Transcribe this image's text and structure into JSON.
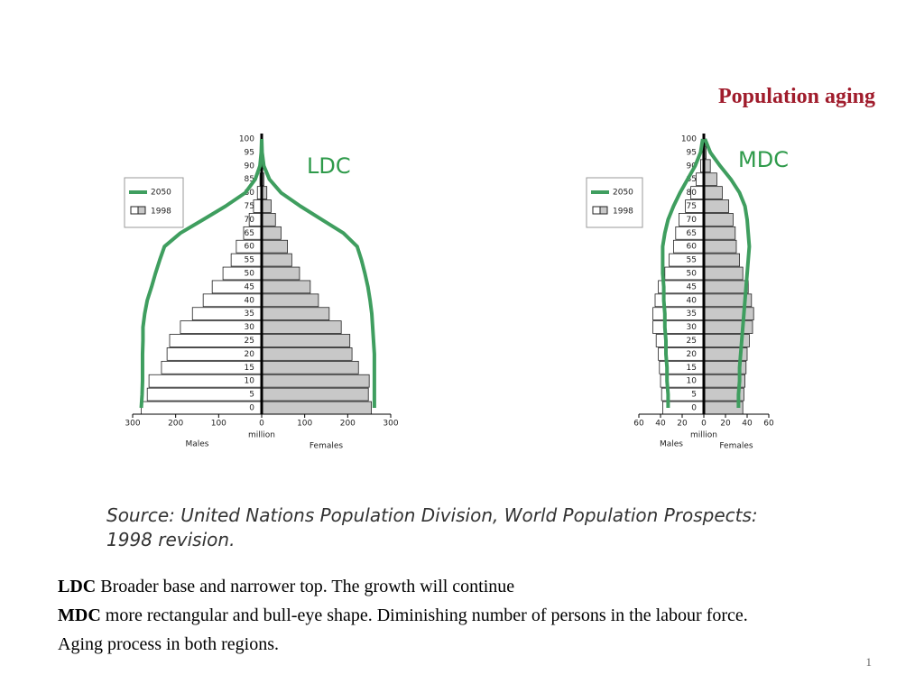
{
  "title": "Population aging",
  "chart_data": [
    {
      "type": "pyramid",
      "title": "LDC",
      "xlabel": "million",
      "left_label": "Males",
      "right_label": "Females",
      "categories": [
        "0",
        "5",
        "10",
        "15",
        "20",
        "25",
        "30",
        "35",
        "40",
        "45",
        "50",
        "55",
        "60",
        "65",
        "70",
        "75",
        "80",
        "85",
        "90",
        "95",
        "100"
      ],
      "xlim": [
        0,
        300
      ],
      "xticks": [
        0,
        100,
        200,
        300
      ],
      "series": [
        {
          "name": "2050",
          "color": "#3f9e5f",
          "males": [
            280,
            278,
            277,
            277,
            277,
            276,
            276,
            272,
            266,
            256,
            247,
            237,
            226,
            189,
            136,
            84,
            38,
            15,
            4,
            1,
            0
          ],
          "females": [
            262,
            262,
            262,
            262,
            262,
            260,
            258,
            256,
            252,
            247,
            240,
            232,
            222,
            190,
            140,
            90,
            45,
            18,
            5,
            1,
            0
          ]
        },
        {
          "name": "1998",
          "color": "#c8c8c8",
          "males": [
            280,
            266,
            262,
            233,
            220,
            214,
            189,
            161,
            136,
            115,
            90,
            71,
            59,
            42,
            29,
            19,
            10,
            4,
            1,
            0,
            0
          ],
          "females": [
            255,
            248,
            250,
            225,
            210,
            205,
            185,
            157,
            132,
            113,
            88,
            70,
            60,
            45,
            32,
            22,
            12,
            5,
            2,
            0,
            0
          ]
        }
      ]
    },
    {
      "type": "pyramid",
      "title": "MDC",
      "xlabel": "million",
      "left_label": "Males",
      "right_label": "Females",
      "categories": [
        "0",
        "5",
        "10",
        "15",
        "20",
        "25",
        "30",
        "35",
        "40",
        "45",
        "50",
        "55",
        "60",
        "65",
        "70",
        "75",
        "80",
        "85",
        "90",
        "95",
        "100"
      ],
      "xlim": [
        0,
        60
      ],
      "xticks": [
        0,
        20,
        40,
        60
      ],
      "series": [
        {
          "name": "2050",
          "color": "#3f9e5f",
          "males": [
            33,
            33,
            34,
            34,
            35,
            35,
            36,
            36,
            37,
            37,
            38,
            38,
            38,
            36,
            33,
            28,
            22,
            15,
            8,
            3,
            1
          ],
          "females": [
            32,
            32,
            33,
            33,
            34,
            35,
            36,
            37,
            38,
            39,
            40,
            41,
            42,
            41,
            40,
            38,
            33,
            25,
            15,
            6,
            1
          ]
        },
        {
          "name": "1998",
          "color": "#c8c8c8",
          "males": [
            38,
            39,
            40,
            41,
            42,
            44,
            47,
            47,
            45,
            42,
            36,
            32,
            28,
            26,
            23,
            17,
            12,
            7,
            3,
            1,
            0
          ],
          "females": [
            36,
            37,
            38,
            39,
            40,
            42,
            45,
            46,
            44,
            41,
            36,
            33,
            30,
            29,
            27,
            23,
            17,
            12,
            6,
            2,
            0
          ]
        }
      ]
    }
  ],
  "source": "Source: United Nations Population Division, World Population Prospects: 1998 revision.",
  "notes": [
    {
      "term": "LDC",
      "text": "Broader base and narrower top. The growth will continue"
    },
    {
      "term": "MDC",
      "text": "more rectangular and bull-eye shape. Diminishing number of persons in the labour force."
    },
    {
      "text": "Aging process in both regions."
    }
  ],
  "page_number": "1"
}
